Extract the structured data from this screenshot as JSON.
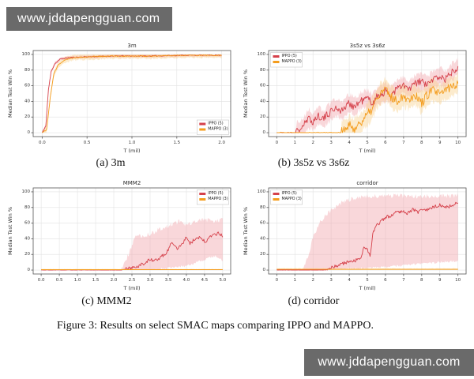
{
  "watermark_top": {
    "text": "www.jddapengguan.com"
  },
  "watermark_bottom": {
    "text": "www.jddapengguan.com"
  },
  "subcaptions": {
    "a": "(a) 3m",
    "b": "(b) 3s5z vs 3s6z",
    "c": "(c) MMM2",
    "d": "(d) corridor"
  },
  "figure_caption": "Figure 3: Results on select SMAC maps comparing IPPO and MAPPO.",
  "colors": {
    "ippo": "#d5404a",
    "mappo": "#f49c1c",
    "ippo_band": "#f2a6ac",
    "mappo_band": "#f8d291",
    "grid": "#e2e2e2",
    "spine": "#555555",
    "tick_text": "#3a3a3a",
    "watermark_bg": "#6a6a6a"
  },
  "chart_data": [
    {
      "type": "line",
      "title": "3m",
      "xlabel": "T (mil)",
      "ylabel": "Median Test Win %",
      "xlim": [
        -0.1,
        2.1
      ],
      "ylim": [
        -5,
        105
      ],
      "xticks": [
        0,
        0.5,
        1.0,
        1.5,
        2.0
      ],
      "xtick_labels": [
        "0.0",
        "0.5",
        "1.0",
        "1.5",
        "2.0"
      ],
      "yticks": [
        0,
        20,
        40,
        60,
        80,
        100
      ],
      "legend_pos": "bottom-right",
      "series": [
        {
          "name": "IPPO (5)",
          "color_key": "ippo",
          "seed": 11,
          "noise": 0.7,
          "band": 2,
          "x": [
            0,
            0.04,
            0.07,
            0.1,
            0.14,
            0.2,
            0.3,
            0.5,
            0.8,
            1.2,
            1.6,
            2.0
          ],
          "y": [
            0,
            8,
            55,
            78,
            88,
            94,
            96,
            97,
            98,
            98,
            99,
            99
          ]
        },
        {
          "name": "MAPPO (3)",
          "color_key": "mappo",
          "seed": 12,
          "noise": 0.7,
          "band": 3.5,
          "x": [
            0,
            0.05,
            0.09,
            0.13,
            0.18,
            0.25,
            0.35,
            0.5,
            0.8,
            1.2,
            1.6,
            2.0
          ],
          "y": [
            0,
            4,
            45,
            75,
            87,
            93,
            96,
            97,
            98,
            98,
            99,
            99
          ]
        }
      ]
    },
    {
      "type": "line",
      "title": "3s5z vs 3s6z",
      "xlabel": "T (mil)",
      "ylabel": "Median Test Win %",
      "xlim": [
        -0.45,
        10.45
      ],
      "ylim": [
        -5,
        105
      ],
      "xticks": [
        0,
        1,
        2,
        3,
        4,
        5,
        6,
        7,
        8,
        9,
        10
      ],
      "xtick_labels": [
        "0",
        "1",
        "2",
        "3",
        "4",
        "5",
        "6",
        "7",
        "8",
        "9",
        "10"
      ],
      "yticks": [
        0,
        20,
        40,
        60,
        80,
        100
      ],
      "legend_pos": "top-left",
      "series": [
        {
          "name": "IPPO (5)",
          "color_key": "ippo",
          "seed": 21,
          "noise": 5,
          "band": 11,
          "x": [
            0,
            1.0,
            1.2,
            1.5,
            1.8,
            2.0,
            2.3,
            2.6,
            3.0,
            3.3,
            3.6,
            4.0,
            4.3,
            4.6,
            5.0,
            5.3,
            5.6,
            6.0,
            6.3,
            6.6,
            7.0,
            7.3,
            7.6,
            8.0,
            8.3,
            8.6,
            9.0,
            9.3,
            9.6,
            10.0
          ],
          "y": [
            0,
            0,
            3,
            10,
            18,
            14,
            22,
            18,
            28,
            32,
            28,
            38,
            33,
            40,
            44,
            38,
            48,
            52,
            48,
            56,
            60,
            55,
            62,
            66,
            60,
            68,
            72,
            68,
            76,
            85
          ]
        },
        {
          "name": "MAPPO (3)",
          "color_key": "mappo",
          "seed": 22,
          "noise": 6,
          "band": 13,
          "x": [
            0,
            3.5,
            3.8,
            4.0,
            4.3,
            4.6,
            4.9,
            5.2,
            5.5,
            5.8,
            6.0,
            6.3,
            6.6,
            7.0,
            7.3,
            7.6,
            8.0,
            8.3,
            8.6,
            9.0,
            9.3,
            9.6,
            10.0
          ],
          "y": [
            0,
            0,
            4,
            9,
            5,
            13,
            20,
            28,
            42,
            52,
            55,
            46,
            40,
            48,
            42,
            50,
            38,
            48,
            55,
            48,
            55,
            58,
            63
          ]
        }
      ]
    },
    {
      "type": "line",
      "title": "MMM2",
      "xlabel": "T (mil)",
      "ylabel": "Median Test Win %",
      "xlim": [
        -0.22,
        5.22
      ],
      "ylim": [
        -5,
        105
      ],
      "xticks": [
        0,
        0.5,
        1.0,
        1.5,
        2.0,
        2.5,
        3.0,
        3.5,
        4.0,
        4.5,
        5.0
      ],
      "xtick_labels": [
        "0.0",
        "0.5",
        "1.0",
        "1.5",
        "2.0",
        "2.5",
        "3.0",
        "3.5",
        "4.0",
        "4.5",
        "5.0"
      ],
      "yticks": [
        0,
        20,
        40,
        60,
        80,
        100
      ],
      "legend_pos": "top-right",
      "series": [
        {
          "name": "IPPO (5)",
          "color_key": "ippo",
          "seed": 31,
          "noise": 2.2,
          "band_abs": {
            "x": [
              0,
              2.2,
              2.4,
              2.6,
              3.0,
              3.4,
              3.8,
              4.0,
              4.4,
              4.8,
              5.0
            ],
            "upper": [
              0,
              0,
              20,
              42,
              46,
              55,
              62,
              58,
              65,
              62,
              66
            ],
            "lower": [
              0,
              0,
              0,
              0,
              0,
              2,
              5,
              5,
              12,
              18,
              12
            ]
          },
          "x": [
            0,
            2.2,
            2.4,
            2.6,
            2.8,
            3.0,
            3.1,
            3.25,
            3.4,
            3.5,
            3.6,
            3.75,
            3.9,
            4.0,
            4.1,
            4.25,
            4.4,
            4.5,
            4.6,
            4.75,
            4.9,
            5.0
          ],
          "y": [
            0,
            0,
            2,
            4,
            8,
            13,
            12,
            15,
            20,
            26,
            36,
            28,
            34,
            43,
            34,
            40,
            42,
            36,
            40,
            45,
            48,
            42
          ]
        },
        {
          "name": "MAPPO (3)",
          "color_key": "mappo",
          "seed": 32,
          "noise": 0,
          "band": 0.8,
          "x": [
            0,
            5
          ],
          "y": [
            0.5,
            0.5
          ]
        }
      ]
    },
    {
      "type": "line",
      "title": "corridor",
      "xlabel": "T (mil)",
      "ylabel": "Median Test Win %",
      "xlim": [
        -0.45,
        10.45
      ],
      "ylim": [
        -5,
        105
      ],
      "xticks": [
        0,
        1,
        2,
        3,
        4,
        5,
        6,
        7,
        8,
        9,
        10
      ],
      "xtick_labels": [
        "0",
        "1",
        "2",
        "3",
        "4",
        "5",
        "6",
        "7",
        "8",
        "9",
        "10"
      ],
      "yticks": [
        0,
        20,
        40,
        60,
        80,
        100
      ],
      "legend_pos": "top-left",
      "series": [
        {
          "name": "IPPO (5)",
          "color_key": "ippo",
          "seed": 41,
          "noise": 2.2,
          "band_abs": {
            "x": [
              0,
              1.4,
              1.7,
              2.0,
              2.4,
              2.8,
              3.2,
              3.6,
              4.0,
              4.5,
              5.0,
              6.0,
              7.0,
              8.0,
              9.0,
              10.0
            ],
            "upper": [
              0,
              0,
              15,
              42,
              62,
              72,
              80,
              86,
              90,
              93,
              94,
              95,
              95,
              94,
              95,
              95
            ],
            "lower": [
              0,
              0,
              0,
              0,
              0,
              0,
              1,
              1,
              2,
              2,
              3,
              4,
              6,
              8,
              10,
              12
            ]
          },
          "x": [
            0,
            2.7,
            3.0,
            3.3,
            3.6,
            4.0,
            4.3,
            4.6,
            4.85,
            5.0,
            5.15,
            5.3,
            5.5,
            5.8,
            6.0,
            6.3,
            6.6,
            7.0,
            7.2,
            7.5,
            7.8,
            8.0,
            8.3,
            8.6,
            9.0,
            9.3,
            9.6,
            10.0
          ],
          "y": [
            0,
            0,
            3,
            5,
            8,
            11,
            12,
            14,
            30,
            26,
            18,
            46,
            57,
            63,
            67,
            70,
            74,
            76,
            72,
            78,
            74,
            78,
            76,
            80,
            83,
            80,
            82,
            86
          ]
        },
        {
          "name": "MAPPO (3)",
          "color_key": "mappo",
          "seed": 42,
          "noise": 0,
          "band": 1.2,
          "x": [
            0,
            10
          ],
          "y": [
            1,
            1
          ]
        }
      ]
    }
  ]
}
